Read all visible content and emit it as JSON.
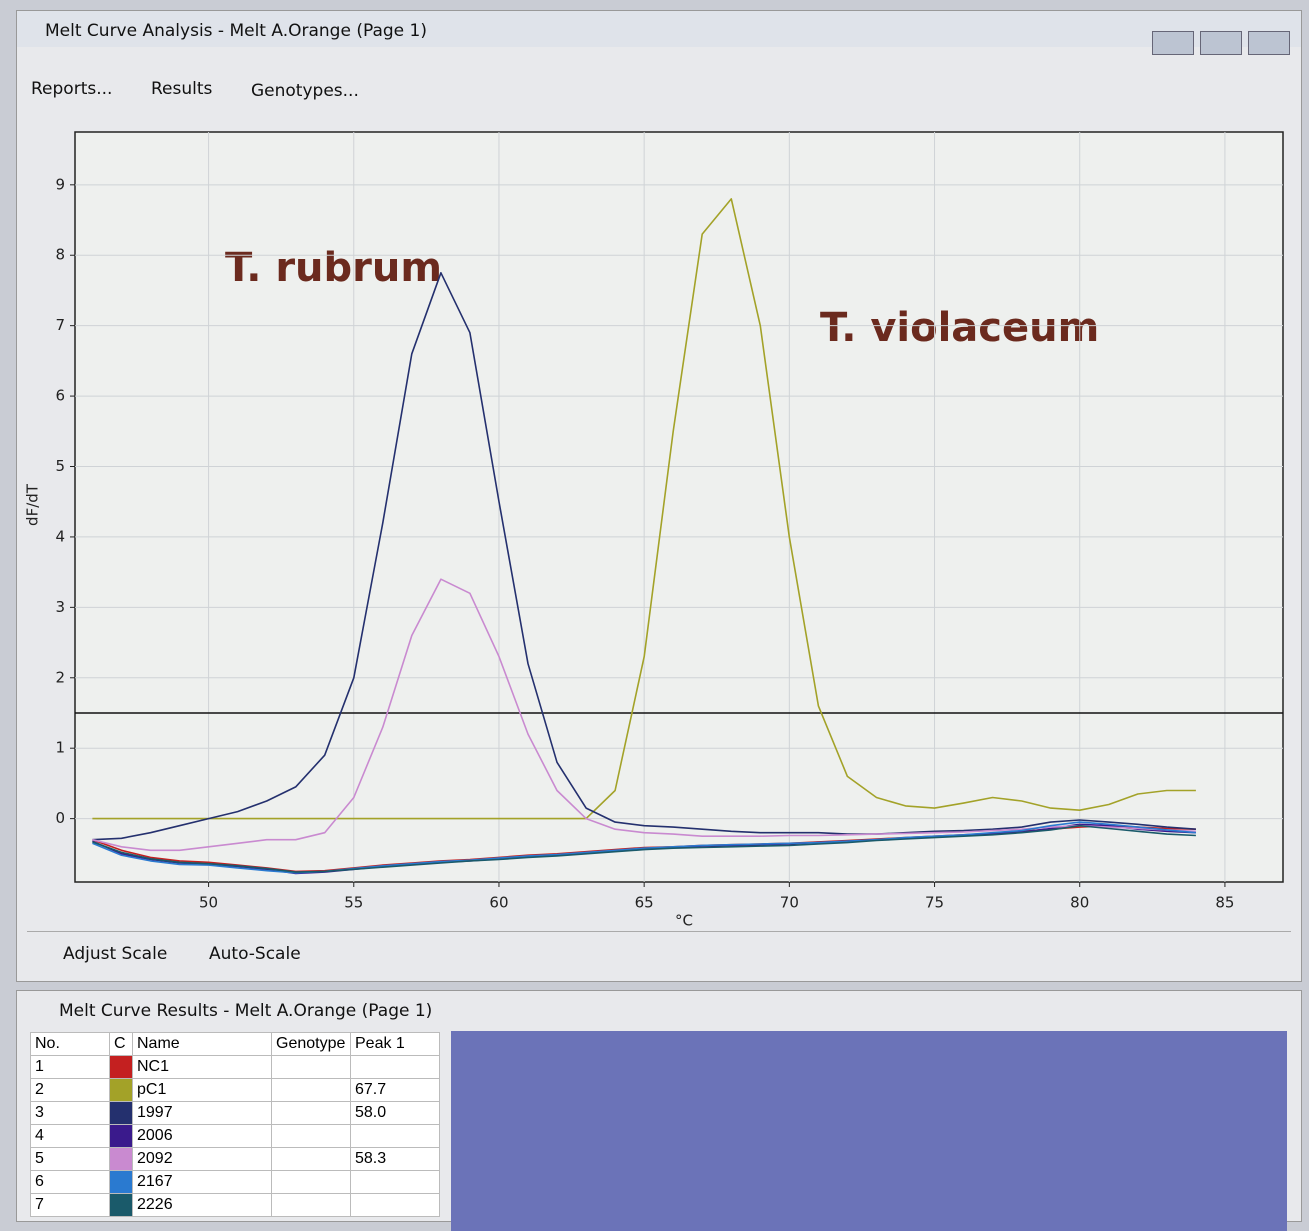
{
  "window": {
    "title": "Melt Curve Analysis - Melt A.Orange (Page 1)"
  },
  "toolbar": [
    "Reports...",
    "Results",
    "Genotypes..."
  ],
  "chart_data": {
    "type": "line",
    "x_label": "°C",
    "y_label": "dF/dT",
    "annotations": [
      "T. rubrum",
      "T. violaceum"
    ],
    "x": [
      46,
      47,
      48,
      49,
      50,
      51,
      52,
      53,
      54,
      55,
      56,
      57,
      58,
      59,
      60,
      61,
      62,
      63,
      64,
      65,
      66,
      67,
      68,
      69,
      70,
      71,
      72,
      73,
      74,
      75,
      76,
      77,
      78,
      79,
      80,
      81,
      82,
      83,
      84
    ],
    "series": [
      {
        "name": "NC1",
        "color": "#c42020",
        "values": [
          -0.3,
          -0.45,
          -0.55,
          -0.6,
          -0.62,
          -0.66,
          -0.7,
          -0.75,
          -0.74,
          -0.7,
          -0.66,
          -0.63,
          -0.6,
          -0.58,
          -0.55,
          -0.52,
          -0.5,
          -0.47,
          -0.44,
          -0.41,
          -0.4,
          -0.38,
          -0.37,
          -0.36,
          -0.35,
          -0.33,
          -0.31,
          -0.29,
          -0.27,
          -0.25,
          -0.23,
          -0.21,
          -0.18,
          -0.15,
          -0.12,
          -0.1,
          -0.12,
          -0.14,
          -0.15
        ]
      },
      {
        "name": "pC1",
        "color": "#a3a228",
        "values": [
          0,
          0,
          0,
          0,
          0,
          0,
          0,
          0,
          0,
          0,
          0,
          0,
          0,
          0,
          0,
          0,
          0,
          0,
          0.4,
          2.3,
          5.5,
          8.3,
          8.8,
          7.0,
          4.0,
          1.6,
          0.6,
          0.3,
          0.18,
          0.15,
          0.22,
          0.3,
          0.25,
          0.15,
          0.12,
          0.2,
          0.35,
          0.4,
          0.4
        ]
      },
      {
        "name": "1997",
        "color": "#24306e",
        "values": [
          -0.3,
          -0.28,
          -0.2,
          -0.1,
          0,
          0.1,
          0.25,
          0.45,
          0.9,
          2.0,
          4.2,
          6.6,
          7.75,
          6.9,
          4.5,
          2.2,
          0.8,
          0.15,
          -0.05,
          -0.1,
          -0.12,
          -0.15,
          -0.18,
          -0.2,
          -0.2,
          -0.2,
          -0.22,
          -0.22,
          -0.2,
          -0.18,
          -0.17,
          -0.15,
          -0.12,
          -0.05,
          -0.02,
          -0.05,
          -0.08,
          -0.12,
          -0.15
        ]
      },
      {
        "name": "2006",
        "color": "#3a1a8c",
        "values": [
          -0.32,
          -0.5,
          -0.58,
          -0.63,
          -0.65,
          -0.68,
          -0.72,
          -0.78,
          -0.76,
          -0.72,
          -0.68,
          -0.65,
          -0.62,
          -0.6,
          -0.57,
          -0.54,
          -0.52,
          -0.49,
          -0.46,
          -0.43,
          -0.41,
          -0.39,
          -0.38,
          -0.37,
          -0.36,
          -0.34,
          -0.32,
          -0.3,
          -0.28,
          -0.26,
          -0.24,
          -0.22,
          -0.19,
          -0.14,
          -0.08,
          -0.1,
          -0.15,
          -0.18,
          -0.2
        ]
      },
      {
        "name": "2092",
        "color": "#c98ad0",
        "values": [
          -0.3,
          -0.4,
          -0.45,
          -0.45,
          -0.4,
          -0.35,
          -0.3,
          -0.3,
          -0.2,
          0.3,
          1.3,
          2.6,
          3.4,
          3.2,
          2.3,
          1.2,
          0.4,
          0,
          -0.15,
          -0.2,
          -0.22,
          -0.25,
          -0.25,
          -0.25,
          -0.24,
          -0.24,
          -0.23,
          -0.22,
          -0.21,
          -0.2,
          -0.19,
          -0.17,
          -0.15,
          -0.12,
          -0.1,
          -0.12,
          -0.14,
          -0.16,
          -0.18
        ]
      },
      {
        "name": "2167",
        "color": "#2a7ad0",
        "values": [
          -0.35,
          -0.52,
          -0.6,
          -0.65,
          -0.66,
          -0.7,
          -0.74,
          -0.77,
          -0.75,
          -0.71,
          -0.67,
          -0.64,
          -0.61,
          -0.59,
          -0.56,
          -0.53,
          -0.51,
          -0.48,
          -0.45,
          -0.42,
          -0.4,
          -0.38,
          -0.37,
          -0.36,
          -0.35,
          -0.34,
          -0.32,
          -0.3,
          -0.27,
          -0.25,
          -0.23,
          -0.2,
          -0.17,
          -0.1,
          -0.05,
          -0.08,
          -0.12,
          -0.16,
          -0.2
        ]
      },
      {
        "name": "2226",
        "color": "#1a5a6a",
        "values": [
          -0.33,
          -0.48,
          -0.57,
          -0.62,
          -0.64,
          -0.67,
          -0.71,
          -0.76,
          -0.75,
          -0.72,
          -0.69,
          -0.66,
          -0.63,
          -0.6,
          -0.58,
          -0.55,
          -0.53,
          -0.5,
          -0.47,
          -0.44,
          -0.42,
          -0.41,
          -0.4,
          -0.39,
          -0.38,
          -0.36,
          -0.34,
          -0.31,
          -0.29,
          -0.27,
          -0.25,
          -0.23,
          -0.2,
          -0.16,
          -0.1,
          -0.14,
          -0.18,
          -0.22,
          -0.24
        ]
      }
    ],
    "threshold": 1.5,
    "xlim": [
      45.4,
      87
    ],
    "ylim": [
      -0.9,
      9.75
    ],
    "xticks": [
      50,
      55,
      60,
      65,
      70,
      75,
      80,
      85
    ],
    "yticks": [
      0,
      1,
      2,
      3,
      4,
      5,
      6,
      7,
      8,
      9
    ],
    "grid": true
  },
  "bottom_buttons": [
    "Adjust Scale",
    "Auto-Scale"
  ],
  "results": {
    "title": "Melt Curve Results - Melt A.Orange (Page 1)",
    "columns": [
      "No.",
      "C",
      "Name",
      "Genotype",
      "Peak 1"
    ],
    "rows": [
      {
        "no": 1
      },
      {
        "no": 2,
        "peak": "67.7"
      },
      {
        "no": 3,
        "peak": "58.0"
      },
      {
        "no": 4
      },
      {
        "no": 5,
        "peak": "58.3"
      },
      {
        "no": 6
      },
      {
        "no": 7
      }
    ]
  }
}
